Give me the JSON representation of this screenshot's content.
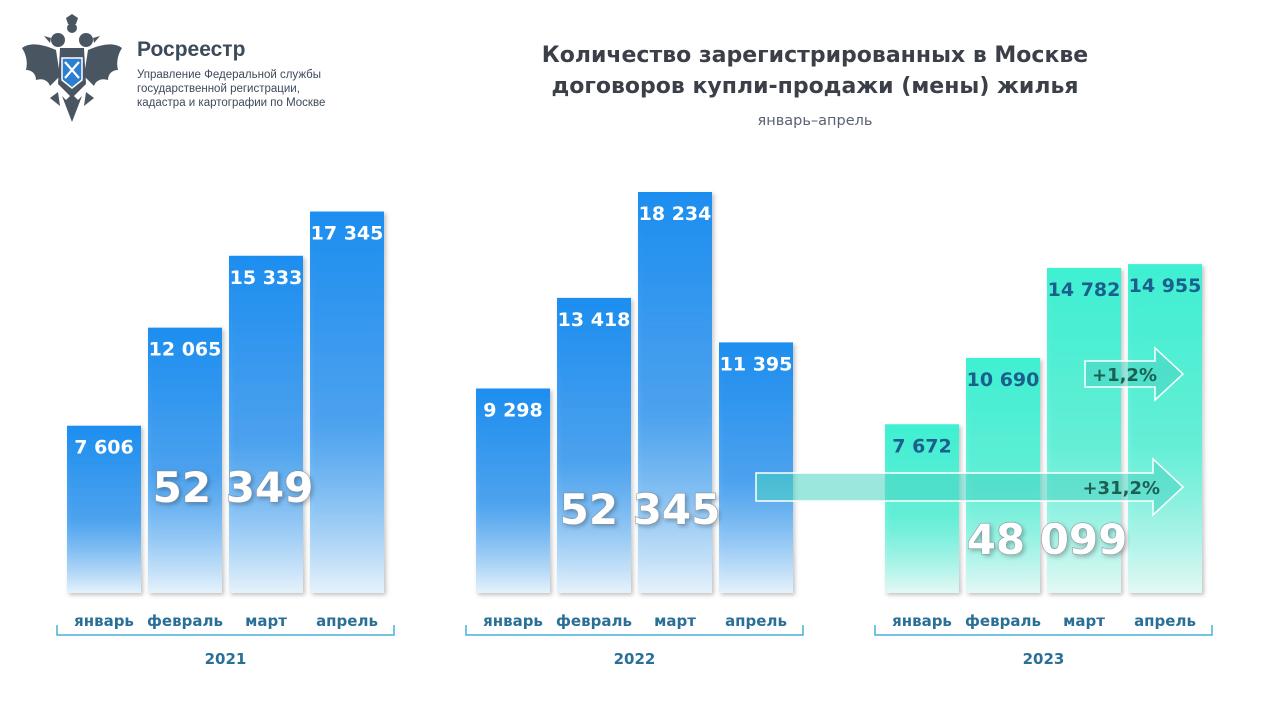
{
  "header": {
    "org_name": "Росреестр",
    "org_subtitle": [
      "Управление Федеральной службы",
      "государственной регистрации,",
      "кадастра и картографии по Москве"
    ],
    "logo_icon": "double-headed-eagle-emblem-icon"
  },
  "colors": {
    "blue_bar": "#1e8ef0",
    "teal_bar": "#3ff0d2",
    "arrow": "#49d3c1",
    "axis_label": "#2a6f96",
    "group_line": "#47b4d6"
  },
  "chart_data": {
    "type": "bar",
    "title": "Количество зарегистрированных в Москве договоров купли-продажи (мены) жилья",
    "title_lines": [
      "Количество зарегистрированных в Москве",
      "договоров купли-продажи (мены) жилья"
    ],
    "subtitle": "январь–апрель",
    "categories": [
      "январь",
      "февраль",
      "март",
      "апрель"
    ],
    "series": [
      {
        "name": "2021",
        "values": [
          7606,
          12065,
          15333,
          17345
        ],
        "labels": [
          "7 606",
          "12 065",
          "15 333",
          "17 345"
        ],
        "total": "52 349"
      },
      {
        "name": "2022",
        "values": [
          9298,
          13418,
          18234,
          11395
        ],
        "labels": [
          "9 298",
          "13 418",
          "18 234",
          "11 395"
        ],
        "total": "52 345"
      },
      {
        "name": "2023",
        "values": [
          7672,
          10690,
          14782,
          14955
        ],
        "labels": [
          "7 672",
          "10 690",
          "14 782",
          "14 955"
        ],
        "total": "48 099"
      }
    ],
    "annotations": [
      {
        "text": "+1,2%",
        "from": "2023 март",
        "to": "2023 апрель"
      },
      {
        "text": "+31,2%",
        "from": "2022 апрель",
        "to": "2023 апрель"
      }
    ],
    "ylim": [
      0,
      18234
    ],
    "grid": false,
    "legend": "none"
  }
}
